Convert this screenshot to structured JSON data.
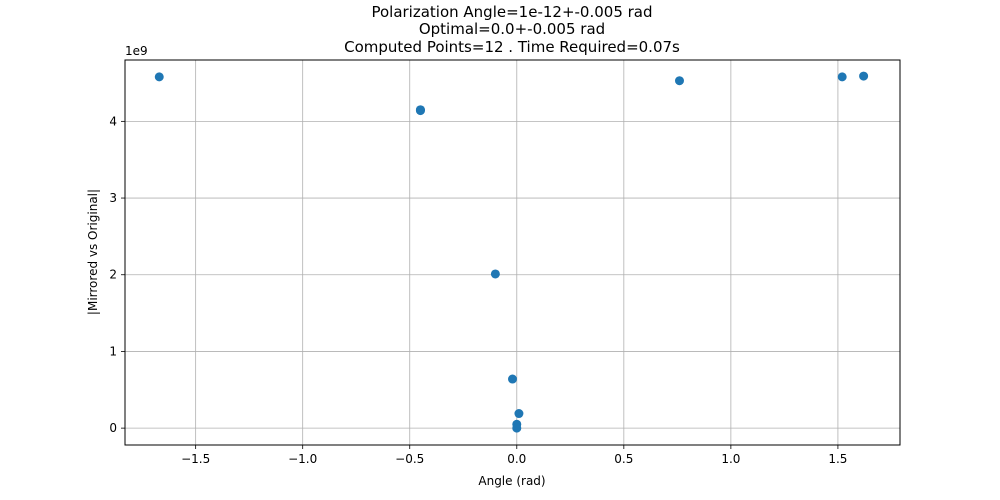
{
  "chart_data": {
    "type": "scatter",
    "title_lines": [
      "Polarization Angle=1e-12+-0.005 rad",
      "Optimal=0.0+-0.005 rad",
      "Computed Points=12 . Time Required=0.07s"
    ],
    "xlabel": "Angle (rad)",
    "ylabel": "|Mirrored vs Original|",
    "y_offset_label": "1e9",
    "xlim": [
      -1.83,
      1.79
    ],
    "ylim": [
      -0.22,
      4.8
    ],
    "grid": true,
    "marker_color": "#1f77b4",
    "x_ticks": [
      {
        "value": -1.5,
        "label": "−1.5"
      },
      {
        "value": -1.0,
        "label": "−1.0"
      },
      {
        "value": -0.5,
        "label": "−0.5"
      },
      {
        "value": 0.0,
        "label": "0.0"
      },
      {
        "value": 0.5,
        "label": "0.5"
      },
      {
        "value": 1.0,
        "label": "1.0"
      },
      {
        "value": 1.5,
        "label": "1.5"
      }
    ],
    "y_ticks": [
      {
        "value": 0,
        "label": "0"
      },
      {
        "value": 1,
        "label": "1"
      },
      {
        "value": 2,
        "label": "2"
      },
      {
        "value": 3,
        "label": "3"
      },
      {
        "value": 4,
        "label": "4"
      }
    ],
    "points": [
      {
        "x": -1.67,
        "y": 4.58
      },
      {
        "x": -0.45,
        "y": 4.15
      },
      {
        "x": -0.45,
        "y": 4.14
      },
      {
        "x": -0.1,
        "y": 2.01
      },
      {
        "x": -0.02,
        "y": 0.64
      },
      {
        "x": 0.0,
        "y": 0.05
      },
      {
        "x": 0.0,
        "y": 0.0
      },
      {
        "x": 0.01,
        "y": 0.19
      },
      {
        "x": 0.76,
        "y": 4.53
      },
      {
        "x": 1.52,
        "y": 4.58
      },
      {
        "x": 1.62,
        "y": 4.59
      },
      {
        "x": -0.45,
        "y": 4.15
      }
    ]
  }
}
